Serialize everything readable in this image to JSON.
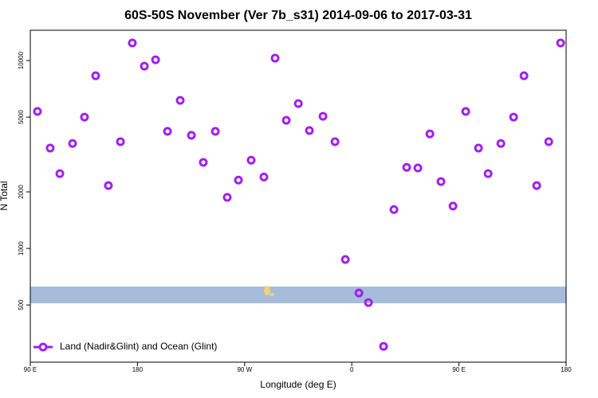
{
  "chart_data": {
    "type": "scatter",
    "title": "60S-50S November (Ver 7b_s31)   2014-09-06 to 2017-03-31",
    "x_label": "Longitude (deg E)",
    "y_label": "N Total",
    "log_y": true,
    "legend": "bottomleft",
    "xlim": [
      90,
      540
    ],
    "ylim": [
      248,
      14500
    ],
    "xticks": [
      {
        "value": 90,
        "label": "90 E"
      },
      {
        "value": 180,
        "label": "180"
      },
      {
        "value": 270,
        "label": "90 W"
      },
      {
        "value": 360,
        "label": "0"
      },
      {
        "value": 450,
        "label": "90 E"
      },
      {
        "value": 540,
        "label": "180"
      }
    ],
    "yticks": [
      500,
      1000,
      2000,
      5000,
      10000
    ],
    "series": [
      {
        "name": "Land (Nadir&Glint) and Ocean (Glint)",
        "color": "#a020f0",
        "x": [
          96.0,
          106.7,
          114.8,
          125.5,
          135.5,
          144.9,
          155.6,
          165.7,
          175.7,
          185.8,
          195.2,
          205.2,
          215.9,
          225.3,
          235.3,
          245.4,
          255.4,
          264.8,
          275.5,
          286.2,
          295.6,
          305.0,
          315.1,
          324.4,
          335.8,
          345.9,
          354.6,
          366.0,
          374.0,
          386.7,
          395.4,
          406.1,
          415.5,
          425.6,
          434.9,
          445.0,
          455.7,
          466.4,
          474.5,
          485.2,
          495.9,
          504.6,
          515.3,
          525.4,
          535.4
        ],
        "values": [
          5360,
          3420,
          2500,
          3620,
          5000,
          8300,
          2160,
          3700,
          12400,
          9340,
          10100,
          4200,
          6140,
          4000,
          2870,
          4200,
          1870,
          2310,
          2950,
          2400,
          10300,
          4810,
          5900,
          4240,
          5050,
          3700,
          873,
          579,
          515,
          301,
          1610,
          2700,
          2680,
          4070,
          2270,
          1680,
          5360,
          3420,
          2500,
          3620,
          5000,
          8300,
          2160,
          3700,
          12400
        ]
      }
    ]
  }
}
